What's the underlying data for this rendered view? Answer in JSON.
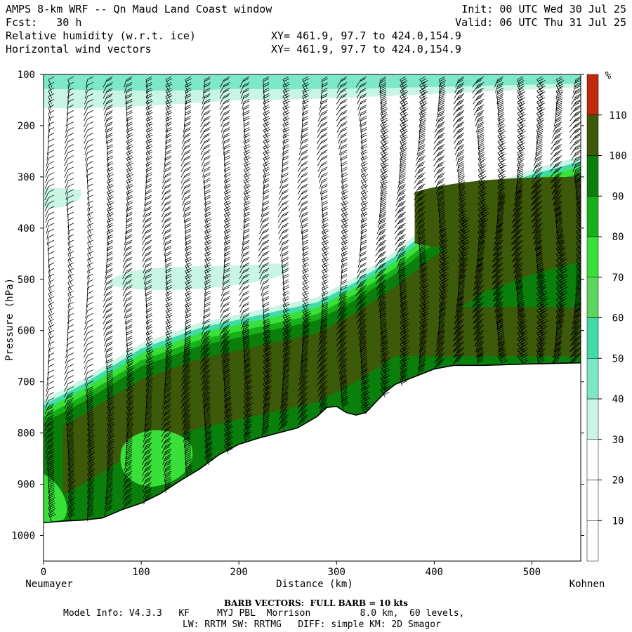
{
  "header": {
    "title": "AMPS 8-km WRF -- Qn Maud Land Coast window",
    "fcst": "Fcst:   30 h",
    "field1": "Relative humidity (w.r.t. ice)",
    "field2": "Horizontal wind vectors",
    "xy1": "XY= 461.9, 97.7 to 424.0,154.9",
    "xy2": "XY= 461.9, 97.7 to 424.0,154.9",
    "init": "Init: 00 UTC Wed 30 Jul 25",
    "valid": "Valid: 06 UTC Thu 31 Jul 25"
  },
  "footer": {
    "barb": "BARB VECTORS:  FULL BARB = 10 kts",
    "info1": "Model Info: V4.3.3   KF     MYJ PBL  Morrison         8.0 km,  60 levels,",
    "info2": "LW: RRTM SW: RRTMG   DIFF: simple KM: 2D Smagor"
  },
  "chart_data": {
    "type": "heatmap",
    "title": "Relative humidity (w.r.t. ice) and horizontal wind vectors",
    "xlabel": "Distance (km)",
    "ylabel": "Pressure (hPa)",
    "left_endpoint": "Neumayer",
    "right_endpoint": "Kohnen",
    "colorbar_unit": "%",
    "xlim": [
      0,
      550
    ],
    "ylim": [
      1050,
      100
    ],
    "xticks": [
      0,
      100,
      200,
      300,
      400,
      500
    ],
    "yticks": [
      100,
      200,
      300,
      400,
      500,
      600,
      700,
      800,
      900,
      1000
    ],
    "colorbar": {
      "levels": [
        10,
        20,
        30,
        40,
        50,
        60,
        70,
        80,
        90,
        100,
        110
      ],
      "colors": [
        "#ffffff",
        "#ffffff",
        "#ffffff",
        "#c8f5e4",
        "#7de8c8",
        "#40dca8",
        "#5cd65c",
        "#3ae03a",
        "#18b018",
        "#0b7f0b",
        "#3d5a0a",
        "#bf2a0a"
      ]
    },
    "terrain_profile": {
      "distance_km": [
        0,
        20,
        40,
        60,
        80,
        100,
        120,
        140,
        160,
        180,
        200,
        220,
        240,
        260,
        280,
        290,
        300,
        310,
        320,
        330,
        340,
        350,
        360,
        380,
        400,
        420,
        450,
        500,
        550
      ],
      "surface_pressure_hPa": [
        975,
        972,
        970,
        966,
        950,
        937,
        918,
        893,
        870,
        842,
        822,
        810,
        800,
        790,
        768,
        750,
        748,
        760,
        765,
        760,
        740,
        720,
        705,
        690,
        675,
        668,
        668,
        665,
        663
      ]
    },
    "rh_regions": [
      {
        "name": "upper-moist-band",
        "rh_percent": 40,
        "p_top_hPa": 100,
        "p_bottom_hPa": 160
      },
      {
        "name": "left-patch-300hPa",
        "rh_percent": 35,
        "distance_km": [
          0,
          40
        ],
        "p_range_hPa": [
          320,
          360
        ]
      },
      {
        "name": "mid-level-band-500hPa",
        "rh_percent": 35,
        "distance_km": [
          60,
          240
        ],
        "p_range_hPa": [
          470,
          530
        ]
      },
      {
        "name": "moist-layer-above-terrain",
        "rh_percent": 100,
        "note": "deep saturated layer above surface, 90-110%"
      },
      {
        "name": "peak-moisture-plateau",
        "rh_percent": 105,
        "distance_km": [
          380,
          550
        ],
        "p_range_hPa": [
          300,
          660
        ]
      },
      {
        "name": "lower-green-pocket",
        "rh_percent": 75,
        "distance_km": [
          80,
          150
        ],
        "p_range_hPa": [
          780,
          900
        ]
      }
    ],
    "wind": {
      "barb_units": "kts",
      "full_barb_kts": 10,
      "columns_km": [
        5,
        25,
        45,
        65,
        85,
        105,
        125,
        145,
        165,
        185,
        205,
        225,
        245,
        265,
        285,
        305,
        325,
        345,
        365,
        385,
        405,
        425,
        445,
        465,
        485,
        505,
        525,
        545
      ],
      "description": "Westerly winds strengthening with height; strongest (>60 kts) over plateau near Kohnen"
    }
  }
}
